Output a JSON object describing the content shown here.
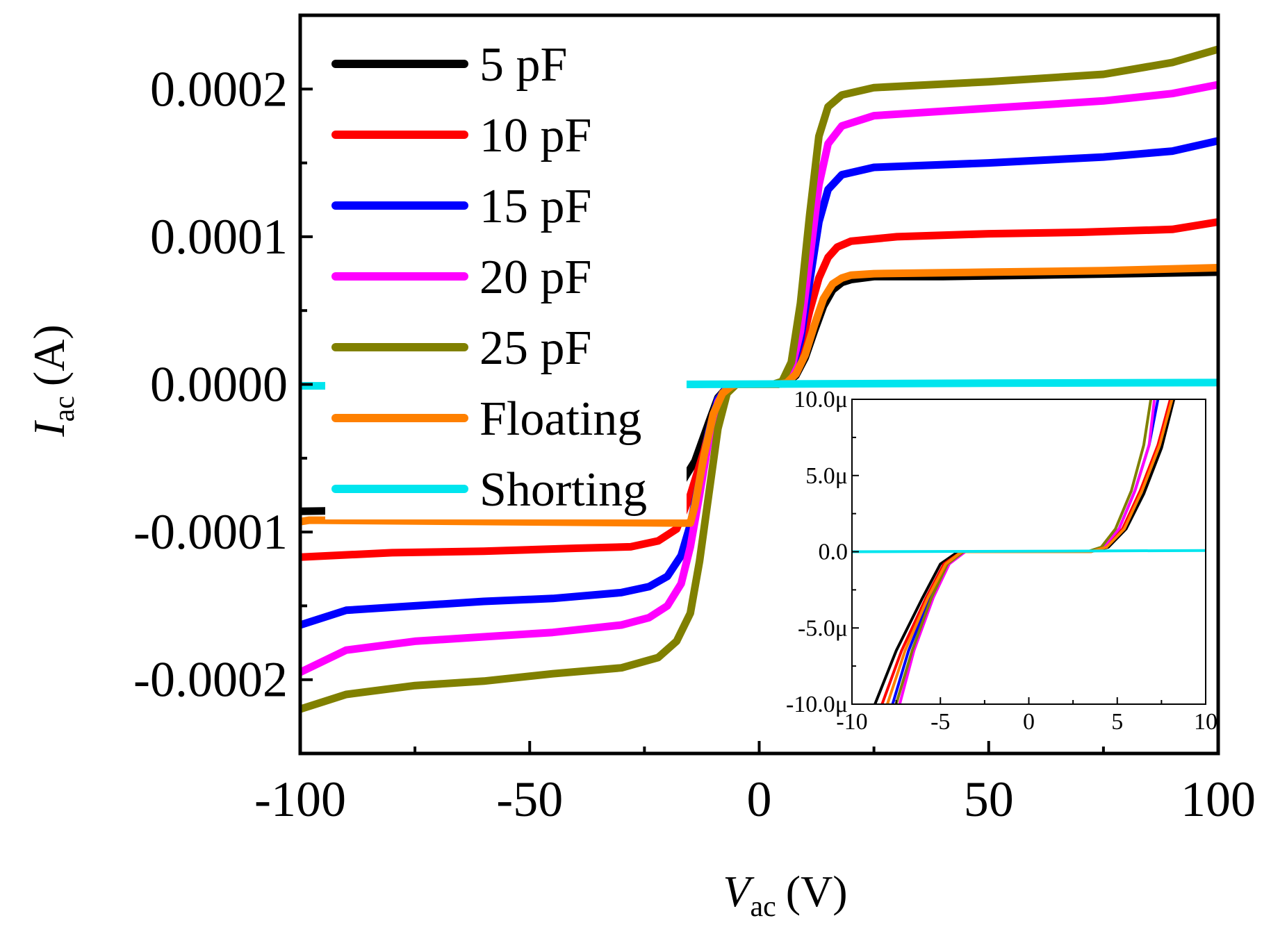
{
  "chart_data": [
    {
      "type": "line",
      "xlabel": {
        "symbol": "V",
        "sub": "ac",
        "unit": "(V)"
      },
      "ylabel": {
        "symbol": "I",
        "sub": "ac",
        "unit": "(A)"
      },
      "xlim": [
        -100,
        100
      ],
      "ylim": [
        -0.00025,
        0.00025
      ],
      "xticks": [
        -100,
        -50,
        0,
        50,
        100
      ],
      "xtick_labels": [
        "-100",
        "-50",
        "0",
        "50",
        "100"
      ],
      "yticks": [
        -0.0002,
        -0.0001,
        0,
        0.0001,
        0.0002
      ],
      "ytick_labels": [
        "-0.0002",
        "-0.0001",
        "0.0000",
        "0.0001",
        "0.0002"
      ],
      "grid": false,
      "legend": "top-left",
      "series": [
        {
          "name": "5 pF",
          "color": "#000000",
          "points": [
            [
              -100,
              -8.6e-05
            ],
            [
              -80,
              -8.5e-05
            ],
            [
              -60,
              -8.3e-05
            ],
            [
              -40,
              -8.2e-05
            ],
            [
              -25,
              -8e-05
            ],
            [
              -18,
              -7.2e-05
            ],
            [
              -14,
              -5.2e-05
            ],
            [
              -11,
              -2.6e-05
            ],
            [
              -9,
              -9e-06
            ],
            [
              -7,
              -2e-06
            ],
            [
              -5,
              0
            ],
            [
              0,
              0
            ],
            [
              4,
              0
            ],
            [
              6,
              1e-06
            ],
            [
              8,
              6e-06
            ],
            [
              10,
              1.8e-05
            ],
            [
              12,
              3.6e-05
            ],
            [
              14,
              5.3e-05
            ],
            [
              16,
              6.4e-05
            ],
            [
              18,
              6.9e-05
            ],
            [
              20,
              7.1e-05
            ],
            [
              25,
              7.3e-05
            ],
            [
              40,
              7.3e-05
            ],
            [
              60,
              7.4e-05
            ],
            [
              80,
              7.5e-05
            ],
            [
              100,
              7.6e-05
            ]
          ]
        },
        {
          "name": "10 pF",
          "color": "#ff0000",
          "points": [
            [
              -100,
              -0.000117
            ],
            [
              -80,
              -0.000114
            ],
            [
              -60,
              -0.000113
            ],
            [
              -40,
              -0.000111
            ],
            [
              -28,
              -0.00011
            ],
            [
              -22,
              -0.000106
            ],
            [
              -18,
              -9.8e-05
            ],
            [
              -15,
              -7.5e-05
            ],
            [
              -12,
              -4.5e-05
            ],
            [
              -10,
              -2e-05
            ],
            [
              -8,
              -6e-06
            ],
            [
              -6,
              -1e-06
            ],
            [
              -5,
              0
            ],
            [
              0,
              0
            ],
            [
              3,
              0
            ],
            [
              5,
              1e-06
            ],
            [
              7,
              7e-06
            ],
            [
              9,
              2.4e-05
            ],
            [
              11,
              5e-05
            ],
            [
              13,
              7.2e-05
            ],
            [
              15,
              8.6e-05
            ],
            [
              17,
              9.3e-05
            ],
            [
              20,
              9.7e-05
            ],
            [
              30,
              0.0001
            ],
            [
              50,
              0.000102
            ],
            [
              70,
              0.000103
            ],
            [
              90,
              0.000105
            ],
            [
              100,
              0.00011
            ]
          ]
        },
        {
          "name": "15 pF",
          "color": "#0000ff",
          "points": [
            [
              -100,
              -0.000163
            ],
            [
              -90,
              -0.000153
            ],
            [
              -75,
              -0.00015
            ],
            [
              -60,
              -0.000147
            ],
            [
              -45,
              -0.000145
            ],
            [
              -30,
              -0.000141
            ],
            [
              -24,
              -0.000137
            ],
            [
              -20,
              -0.00013
            ],
            [
              -17,
              -0.000116
            ],
            [
              -15,
              -9.5e-05
            ],
            [
              -13,
              -6.5e-05
            ],
            [
              -11,
              -3.2e-05
            ],
            [
              -9,
              -1e-05
            ],
            [
              -7,
              -2e-06
            ],
            [
              -5,
              0
            ],
            [
              0,
              0
            ],
            [
              3,
              0
            ],
            [
              5,
              1e-06
            ],
            [
              7,
              9e-06
            ],
            [
              9,
              3e-05
            ],
            [
              11,
              7e-05
            ],
            [
              13,
              0.00011
            ],
            [
              15,
              0.000132
            ],
            [
              18,
              0.000142
            ],
            [
              25,
              0.000147
            ],
            [
              50,
              0.00015
            ],
            [
              75,
              0.000154
            ],
            [
              90,
              0.000158
            ],
            [
              100,
              0.000165
            ]
          ]
        },
        {
          "name": "20 pF",
          "color": "#ff00ff",
          "points": [
            [
              -100,
              -0.000195
            ],
            [
              -90,
              -0.00018
            ],
            [
              -75,
              -0.000174
            ],
            [
              -60,
              -0.000171
            ],
            [
              -45,
              -0.000168
            ],
            [
              -30,
              -0.000163
            ],
            [
              -24,
              -0.000158
            ],
            [
              -20,
              -0.00015
            ],
            [
              -17,
              -0.000135
            ],
            [
              -15,
              -0.00011
            ],
            [
              -13,
              -7.5e-05
            ],
            [
              -11,
              -3.8e-05
            ],
            [
              -9,
              -1.2e-05
            ],
            [
              -7,
              -2e-06
            ],
            [
              -5,
              0
            ],
            [
              0,
              0
            ],
            [
              3,
              0
            ],
            [
              5,
              1e-06
            ],
            [
              7,
              1e-05
            ],
            [
              9,
              3.6e-05
            ],
            [
              11,
              8.5e-05
            ],
            [
              13,
              0.000135
            ],
            [
              15,
              0.000163
            ],
            [
              18,
              0.000175
            ],
            [
              25,
              0.000182
            ],
            [
              50,
              0.000187
            ],
            [
              75,
              0.000192
            ],
            [
              90,
              0.000197
            ],
            [
              100,
              0.000203
            ]
          ]
        },
        {
          "name": "25 pF",
          "color": "#808000",
          "points": [
            [
              -100,
              -0.00022
            ],
            [
              -90,
              -0.00021
            ],
            [
              -75,
              -0.000204
            ],
            [
              -60,
              -0.000201
            ],
            [
              -45,
              -0.000196
            ],
            [
              -30,
              -0.000192
            ],
            [
              -22,
              -0.000185
            ],
            [
              -18,
              -0.000174
            ],
            [
              -15,
              -0.000155
            ],
            [
              -13,
              -0.00012
            ],
            [
              -11,
              -7.5e-05
            ],
            [
              -9,
              -3e-05
            ],
            [
              -7,
              -6e-06
            ],
            [
              -5,
              0
            ],
            [
              0,
              0
            ],
            [
              3,
              0
            ],
            [
              5,
              2e-06
            ],
            [
              7,
              1.5e-05
            ],
            [
              9,
              5.5e-05
            ],
            [
              11,
              0.000115
            ],
            [
              13,
              0.000168
            ],
            [
              15,
              0.000188
            ],
            [
              18,
              0.000196
            ],
            [
              25,
              0.000201
            ],
            [
              50,
              0.000205
            ],
            [
              75,
              0.00021
            ],
            [
              90,
              0.000218
            ],
            [
              100,
              0.000227
            ]
          ]
        },
        {
          "name": "Floating",
          "color": "#ff8000",
          "points": [
            [
              -100,
              -9.3e-05
            ],
            [
              -98,
              -9.2e-05
            ],
            [
              -96,
              -9.2e-05
            ],
            [
              -15,
              -9.4e-05
            ],
            [
              -14,
              -8.2e-05
            ],
            [
              -12,
              -4.8e-05
            ],
            [
              -10,
              -2e-05
            ],
            [
              -8,
              -6e-06
            ],
            [
              -6,
              -1e-06
            ],
            [
              -5,
              0
            ],
            [
              0,
              0
            ],
            [
              4,
              0
            ],
            [
              6,
              1e-06
            ],
            [
              8,
              7e-06
            ],
            [
              10,
              2e-05
            ],
            [
              12,
              4e-05
            ],
            [
              14,
              5.8e-05
            ],
            [
              16,
              6.8e-05
            ],
            [
              18,
              7.2e-05
            ],
            [
              20,
              7.4e-05
            ],
            [
              25,
              7.5e-05
            ],
            [
              50,
              7.6e-05
            ],
            [
              75,
              7.7e-05
            ],
            [
              100,
              7.9e-05
            ]
          ]
        },
        {
          "name": "Shorting",
          "color": "#00e5ee",
          "points": [
            [
              -100,
              -1e-06
            ],
            [
              -96,
              -1e-06
            ],
            [
              -15,
              0
            ],
            [
              0,
              2e-07
            ],
            [
              50,
              8e-07
            ],
            [
              100,
              1.2e-06
            ]
          ]
        }
      ]
    },
    {
      "type": "line",
      "title": "",
      "xlim": [
        -10,
        10
      ],
      "ylim": [
        -1e-05,
        1e-05
      ],
      "xticks": [
        -10,
        -5,
        0,
        5,
        10
      ],
      "xtick_labels": [
        "-10",
        "-5",
        "0",
        "5",
        "10"
      ],
      "yticks": [
        -1e-05,
        -5e-06,
        0,
        5e-06,
        1e-05
      ],
      "ytick_labels": [
        "-10.0μ",
        "-5.0μ",
        "0.0",
        "5.0μ",
        "10.0μ"
      ],
      "grid": false,
      "series": [
        {
          "name": "5 pF",
          "color": "#000000",
          "points": [
            [
              -8.7,
              -1e-05
            ],
            [
              -7.5,
              -6.5e-06
            ],
            [
              -6,
              -3e-06
            ],
            [
              -5,
              -8e-07
            ],
            [
              -4,
              0
            ],
            [
              3.5,
              0
            ],
            [
              4.5,
              3e-07
            ],
            [
              5.5,
              1.5e-06
            ],
            [
              6.5,
              3.8e-06
            ],
            [
              7.5,
              6.8e-06
            ],
            [
              8.2,
              1e-05
            ]
          ]
        },
        {
          "name": "10 pF",
          "color": "#ff0000",
          "points": [
            [
              -8.3,
              -1e-05
            ],
            [
              -7.2,
              -6.5e-06
            ],
            [
              -5.8,
              -3e-06
            ],
            [
              -4.8,
              -8e-07
            ],
            [
              -3.8,
              0
            ],
            [
              3.5,
              0
            ],
            [
              4.3,
              3e-07
            ],
            [
              5.3,
              1.5e-06
            ],
            [
              6.3,
              4e-06
            ],
            [
              7.3,
              7e-06
            ],
            [
              8,
              1e-05
            ]
          ]
        },
        {
          "name": "15 pF",
          "color": "#0000ff",
          "points": [
            [
              -7.7,
              -1e-05
            ],
            [
              -6.8,
              -6.5e-06
            ],
            [
              -5.6,
              -3e-06
            ],
            [
              -4.6,
              -8e-07
            ],
            [
              -3.7,
              0
            ],
            [
              3.4,
              0
            ],
            [
              4.2,
              3e-07
            ],
            [
              5.1,
              1.5e-06
            ],
            [
              6,
              4e-06
            ],
            [
              6.8,
              7e-06
            ],
            [
              7.3,
              1e-05
            ]
          ]
        },
        {
          "name": "20 pF",
          "color": "#ff00ff",
          "points": [
            [
              -7.3,
              -1e-05
            ],
            [
              -6.5,
              -6.5e-06
            ],
            [
              -5.4,
              -3e-06
            ],
            [
              -4.5,
              -8e-07
            ],
            [
              -3.6,
              0
            ],
            [
              3.4,
              0
            ],
            [
              4.2,
              3e-07
            ],
            [
              5.1,
              1.5e-06
            ],
            [
              6,
              4e-06
            ],
            [
              6.8,
              7e-06
            ],
            [
              7.1,
              1e-05
            ]
          ]
        },
        {
          "name": "25 pF",
          "color": "#808000",
          "points": [
            [
              -7.5,
              -1e-05
            ],
            [
              -6.6,
              -6.5e-06
            ],
            [
              -5.5,
              -3e-06
            ],
            [
              -4.6,
              -8e-07
            ],
            [
              -3.7,
              0
            ],
            [
              3.3,
              0
            ],
            [
              4.1,
              3e-07
            ],
            [
              4.9,
              1.5e-06
            ],
            [
              5.8,
              4e-06
            ],
            [
              6.5,
              7e-06
            ],
            [
              6.9,
              1e-05
            ]
          ]
        },
        {
          "name": "Floating",
          "color": "#ff8000",
          "points": [
            [
              -8,
              -1e-05
            ],
            [
              -7,
              -6.5e-06
            ],
            [
              -5.7,
              -3e-06
            ],
            [
              -4.7,
              -8e-07
            ],
            [
              -3.8,
              0
            ],
            [
              3.5,
              0
            ],
            [
              4.4,
              3e-07
            ],
            [
              5.4,
              1.5e-06
            ],
            [
              6.4,
              4e-06
            ],
            [
              7.4,
              7e-06
            ],
            [
              8.1,
              1e-05
            ]
          ]
        },
        {
          "name": "Shorting",
          "color": "#00e5ee",
          "points": [
            [
              -10,
              0
            ],
            [
              0,
              3e-08
            ],
            [
              10,
              8e-08
            ]
          ]
        }
      ]
    }
  ]
}
